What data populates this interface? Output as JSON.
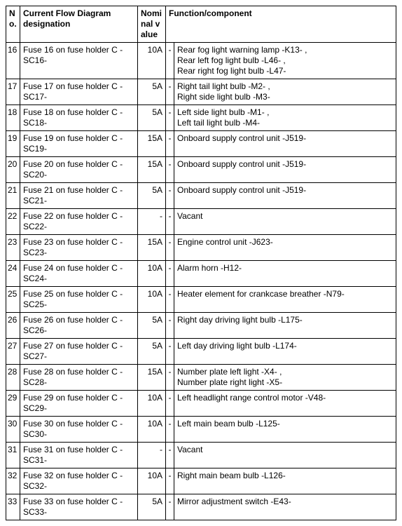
{
  "table": {
    "headers": {
      "no": "No.",
      "cfd": "Current Flow Diagram designation",
      "nom": "Nominal value",
      "func": "Function/component"
    },
    "rows": [
      {
        "no": "16",
        "cfd": "Fuse 16 on fuse holder C -SC16-",
        "nom": "10A",
        "func": "Rear fog light warning lamp -K13- ,\nRear left fog light bulb -L46- ,\nRear right fog light bulb -L47-"
      },
      {
        "no": "17",
        "cfd": "Fuse 17 on fuse holder C -SC17-",
        "nom": "5A",
        "func": "Right tail light bulb -M2- ,\nRight side light bulb -M3-"
      },
      {
        "no": "18",
        "cfd": "Fuse 18 on fuse holder C -SC18-",
        "nom": "5A",
        "func": "Left side light bulb -M1- ,\nLeft tail light bulb -M4-"
      },
      {
        "no": "19",
        "cfd": "Fuse 19 on fuse holder C -SC19-",
        "nom": "15A",
        "func": "Onboard supply control unit -J519-"
      },
      {
        "no": "20",
        "cfd": "Fuse 20 on fuse holder C -SC20-",
        "nom": "15A",
        "func": "Onboard supply control unit -J519-"
      },
      {
        "no": "21",
        "cfd": "Fuse 21 on fuse holder C -SC21-",
        "nom": "5A",
        "func": "Onboard supply control unit -J519-"
      },
      {
        "no": "22",
        "cfd": "Fuse 22 on fuse holder C -SC22-",
        "nom": "-",
        "func": "Vacant"
      },
      {
        "no": "23",
        "cfd": "Fuse 23 on fuse holder C -SC23-",
        "nom": "15A",
        "func": "Engine control unit -J623-"
      },
      {
        "no": "24",
        "cfd": "Fuse 24 on fuse holder C -SC24-",
        "nom": "10A",
        "func": "Alarm horn -H12-"
      },
      {
        "no": "25",
        "cfd": "Fuse 25 on fuse holder C -SC25-",
        "nom": "10A",
        "func": "Heater element for crankcase breather -N79-"
      },
      {
        "no": "26",
        "cfd": "Fuse 26 on fuse holder C -SC26-",
        "nom": "5A",
        "func": "Right day driving light bulb -L175-"
      },
      {
        "no": "27",
        "cfd": "Fuse 27 on fuse holder C -SC27-",
        "nom": "5A",
        "func": "Left day driving light bulb -L174-"
      },
      {
        "no": "28",
        "cfd": "Fuse 28 on fuse holder C -SC28-",
        "nom": "15A",
        "func": "Number plate left light -X4- ,\nNumber plate right light -X5-"
      },
      {
        "no": "29",
        "cfd": "Fuse 29 on fuse holder C -SC29-",
        "nom": "10A",
        "func": "Left headlight range control motor -V48-"
      },
      {
        "no": "30",
        "cfd": "Fuse 30 on fuse holder C -SC30-",
        "nom": "10A",
        "func": "Left main beam bulb -L125-"
      },
      {
        "no": "31",
        "cfd": "Fuse 31 on fuse holder C -SC31-",
        "nom": "-",
        "func": "Vacant"
      },
      {
        "no": "32",
        "cfd": "Fuse 32 on fuse holder C -SC32-",
        "nom": "10A",
        "func": "Right main beam bulb -L126-"
      },
      {
        "no": "33",
        "cfd": "Fuse 33 on fuse holder C -SC33-",
        "nom": "5A",
        "func": "Mirror adjustment switch -E43-"
      }
    ]
  }
}
